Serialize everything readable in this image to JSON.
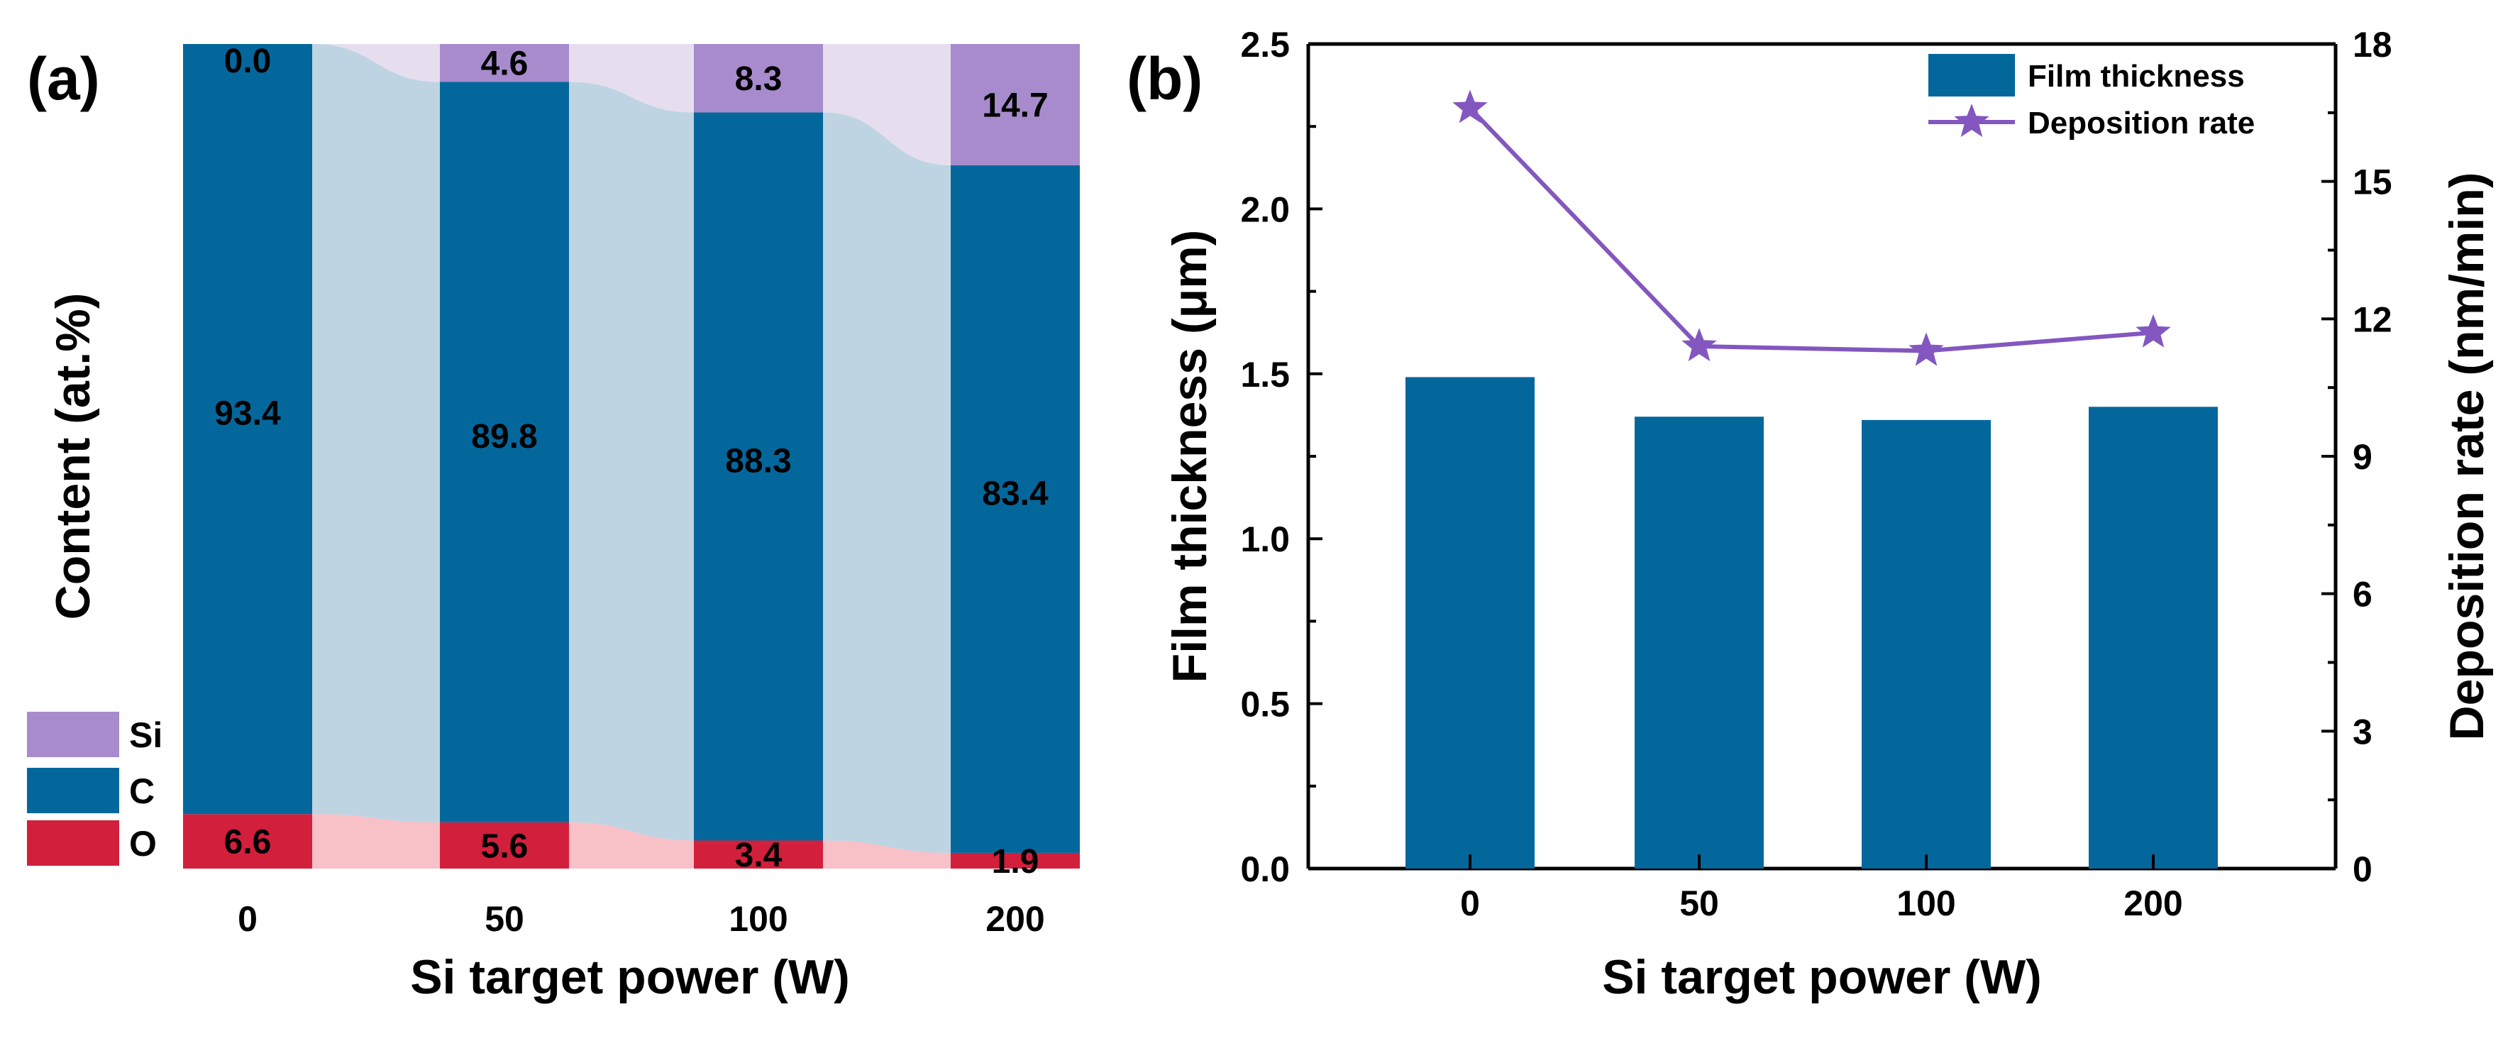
{
  "figure": {
    "label_a": "(a)",
    "label_b": "(b)"
  },
  "colors": {
    "si": "#a88bcd",
    "c": "#04679c",
    "o": "#d21f3c",
    "si_band": "#e6deef",
    "c_band": "#bed4e2",
    "o_band": "#f8c0c7",
    "line": "#8357bf"
  },
  "chart_data": [
    {
      "id": "a",
      "type": "bar",
      "stacked": true,
      "categories": [
        "0",
        "50",
        "100",
        "200"
      ],
      "series": [
        {
          "name": "O",
          "values": [
            6.6,
            5.6,
            3.4,
            1.9
          ]
        },
        {
          "name": "C",
          "values": [
            93.4,
            89.8,
            88.3,
            83.4
          ]
        },
        {
          "name": "Si",
          "values": [
            0.0,
            4.6,
            8.3,
            14.7
          ]
        }
      ],
      "data_labels": {
        "O": [
          "6.6",
          "5.6",
          "3.4",
          "1.9"
        ],
        "C": [
          "93.4",
          "89.8",
          "88.3",
          "83.4"
        ],
        "Si": [
          "0.0",
          "4.6",
          "8.3",
          "14.7"
        ]
      },
      "xlabel": "Si target power (W)",
      "ylabel": "Content (at.%)",
      "ylim": [
        0,
        100
      ],
      "legend": {
        "position": "bottom-left",
        "entries": [
          "Si",
          "C",
          "O"
        ]
      }
    },
    {
      "id": "b",
      "type": "bar+line",
      "categories": [
        "0",
        "50",
        "100",
        "200"
      ],
      "series": [
        {
          "name": "Film thickness",
          "type": "bar",
          "axis": "left",
          "values": [
            1.49,
            1.37,
            1.36,
            1.4
          ]
        },
        {
          "name": "Deposition rate",
          "type": "line",
          "marker": "star",
          "axis": "right",
          "values": [
            16.6,
            11.4,
            11.3,
            11.7
          ]
        }
      ],
      "xlabel": "Si target power (W)",
      "ylabel_left": "Film thickness (μm)",
      "ylabel_right": "Deposition rate (nm/min)",
      "ylim_left": [
        0,
        2.5
      ],
      "ylim_right": [
        0,
        18
      ],
      "yticks_left": [
        "0.0",
        "0.5",
        "1.0",
        "1.5",
        "2.0",
        "2.5"
      ],
      "yticks_right": [
        "0",
        "3",
        "6",
        "9",
        "12",
        "15",
        "18"
      ],
      "legend": {
        "position": "top-right",
        "entries": [
          "Film thickness",
          "Deposition rate"
        ]
      }
    }
  ]
}
